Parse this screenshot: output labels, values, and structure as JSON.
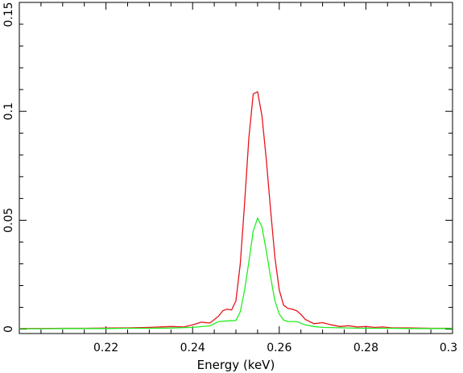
{
  "chart_data": {
    "type": "line",
    "xlabel": "Energy (keV)",
    "ylabel": "",
    "xlim": [
      0.2,
      0.3
    ],
    "ylim": [
      -0.002,
      0.15
    ],
    "x_ticks": [
      {
        "value": 0.22,
        "label": "0.22"
      },
      {
        "value": 0.24,
        "label": "0.24"
      },
      {
        "value": 0.26,
        "label": "0.26"
      },
      {
        "value": 0.28,
        "label": "0.28"
      },
      {
        "value": 0.3,
        "label": "0.3"
      }
    ],
    "y_ticks": [
      {
        "value": 0,
        "label": "0"
      },
      {
        "value": 0.05,
        "label": "0.05"
      },
      {
        "value": 0.1,
        "label": "0.1"
      },
      {
        "value": 0.15,
        "label": "0.15"
      }
    ],
    "grid": false,
    "series": [
      {
        "color": "#e8141c",
        "x": [
          0.2,
          0.205,
          0.21,
          0.215,
          0.22,
          0.225,
          0.23,
          0.235,
          0.238,
          0.24,
          0.242,
          0.244,
          0.246,
          0.247,
          0.248,
          0.249,
          0.25,
          0.251,
          0.252,
          0.253,
          0.254,
          0.255,
          0.256,
          0.257,
          0.258,
          0.259,
          0.26,
          0.261,
          0.262,
          0.263,
          0.264,
          0.265,
          0.266,
          0.268,
          0.27,
          0.272,
          0.274,
          0.276,
          0.278,
          0.28,
          0.282,
          0.284,
          0.286,
          0.29,
          0.295,
          0.3
        ],
        "y": [
          0.0003,
          0.0003,
          0.0004,
          0.0004,
          0.0005,
          0.0006,
          0.0008,
          0.0012,
          0.001,
          0.002,
          0.0032,
          0.0028,
          0.006,
          0.0085,
          0.0092,
          0.0088,
          0.013,
          0.03,
          0.058,
          0.088,
          0.108,
          0.109,
          0.098,
          0.078,
          0.055,
          0.033,
          0.018,
          0.011,
          0.0095,
          0.0092,
          0.0085,
          0.0068,
          0.0045,
          0.0025,
          0.003,
          0.002,
          0.0012,
          0.0016,
          0.001,
          0.0012,
          0.0008,
          0.001,
          0.0006,
          0.0006,
          0.0004,
          0.0004
        ]
      },
      {
        "color": "#22ee22",
        "x": [
          0.2,
          0.205,
          0.21,
          0.215,
          0.22,
          0.225,
          0.23,
          0.235,
          0.24,
          0.244,
          0.246,
          0.248,
          0.25,
          0.251,
          0.252,
          0.253,
          0.254,
          0.255,
          0.256,
          0.257,
          0.258,
          0.259,
          0.26,
          0.261,
          0.262,
          0.264,
          0.266,
          0.268,
          0.27,
          0.275,
          0.28,
          0.285,
          0.29,
          0.295,
          0.3
        ],
        "y": [
          0.0002,
          0.0002,
          0.0003,
          0.0003,
          0.0003,
          0.0004,
          0.0004,
          0.0005,
          0.0008,
          0.0015,
          0.0035,
          0.0038,
          0.004,
          0.008,
          0.018,
          0.031,
          0.045,
          0.051,
          0.047,
          0.036,
          0.024,
          0.013,
          0.007,
          0.0042,
          0.0035,
          0.0035,
          0.002,
          0.0012,
          0.0008,
          0.0006,
          0.0004,
          0.0004,
          0.0003,
          0.0003,
          0.0003
        ]
      }
    ]
  }
}
